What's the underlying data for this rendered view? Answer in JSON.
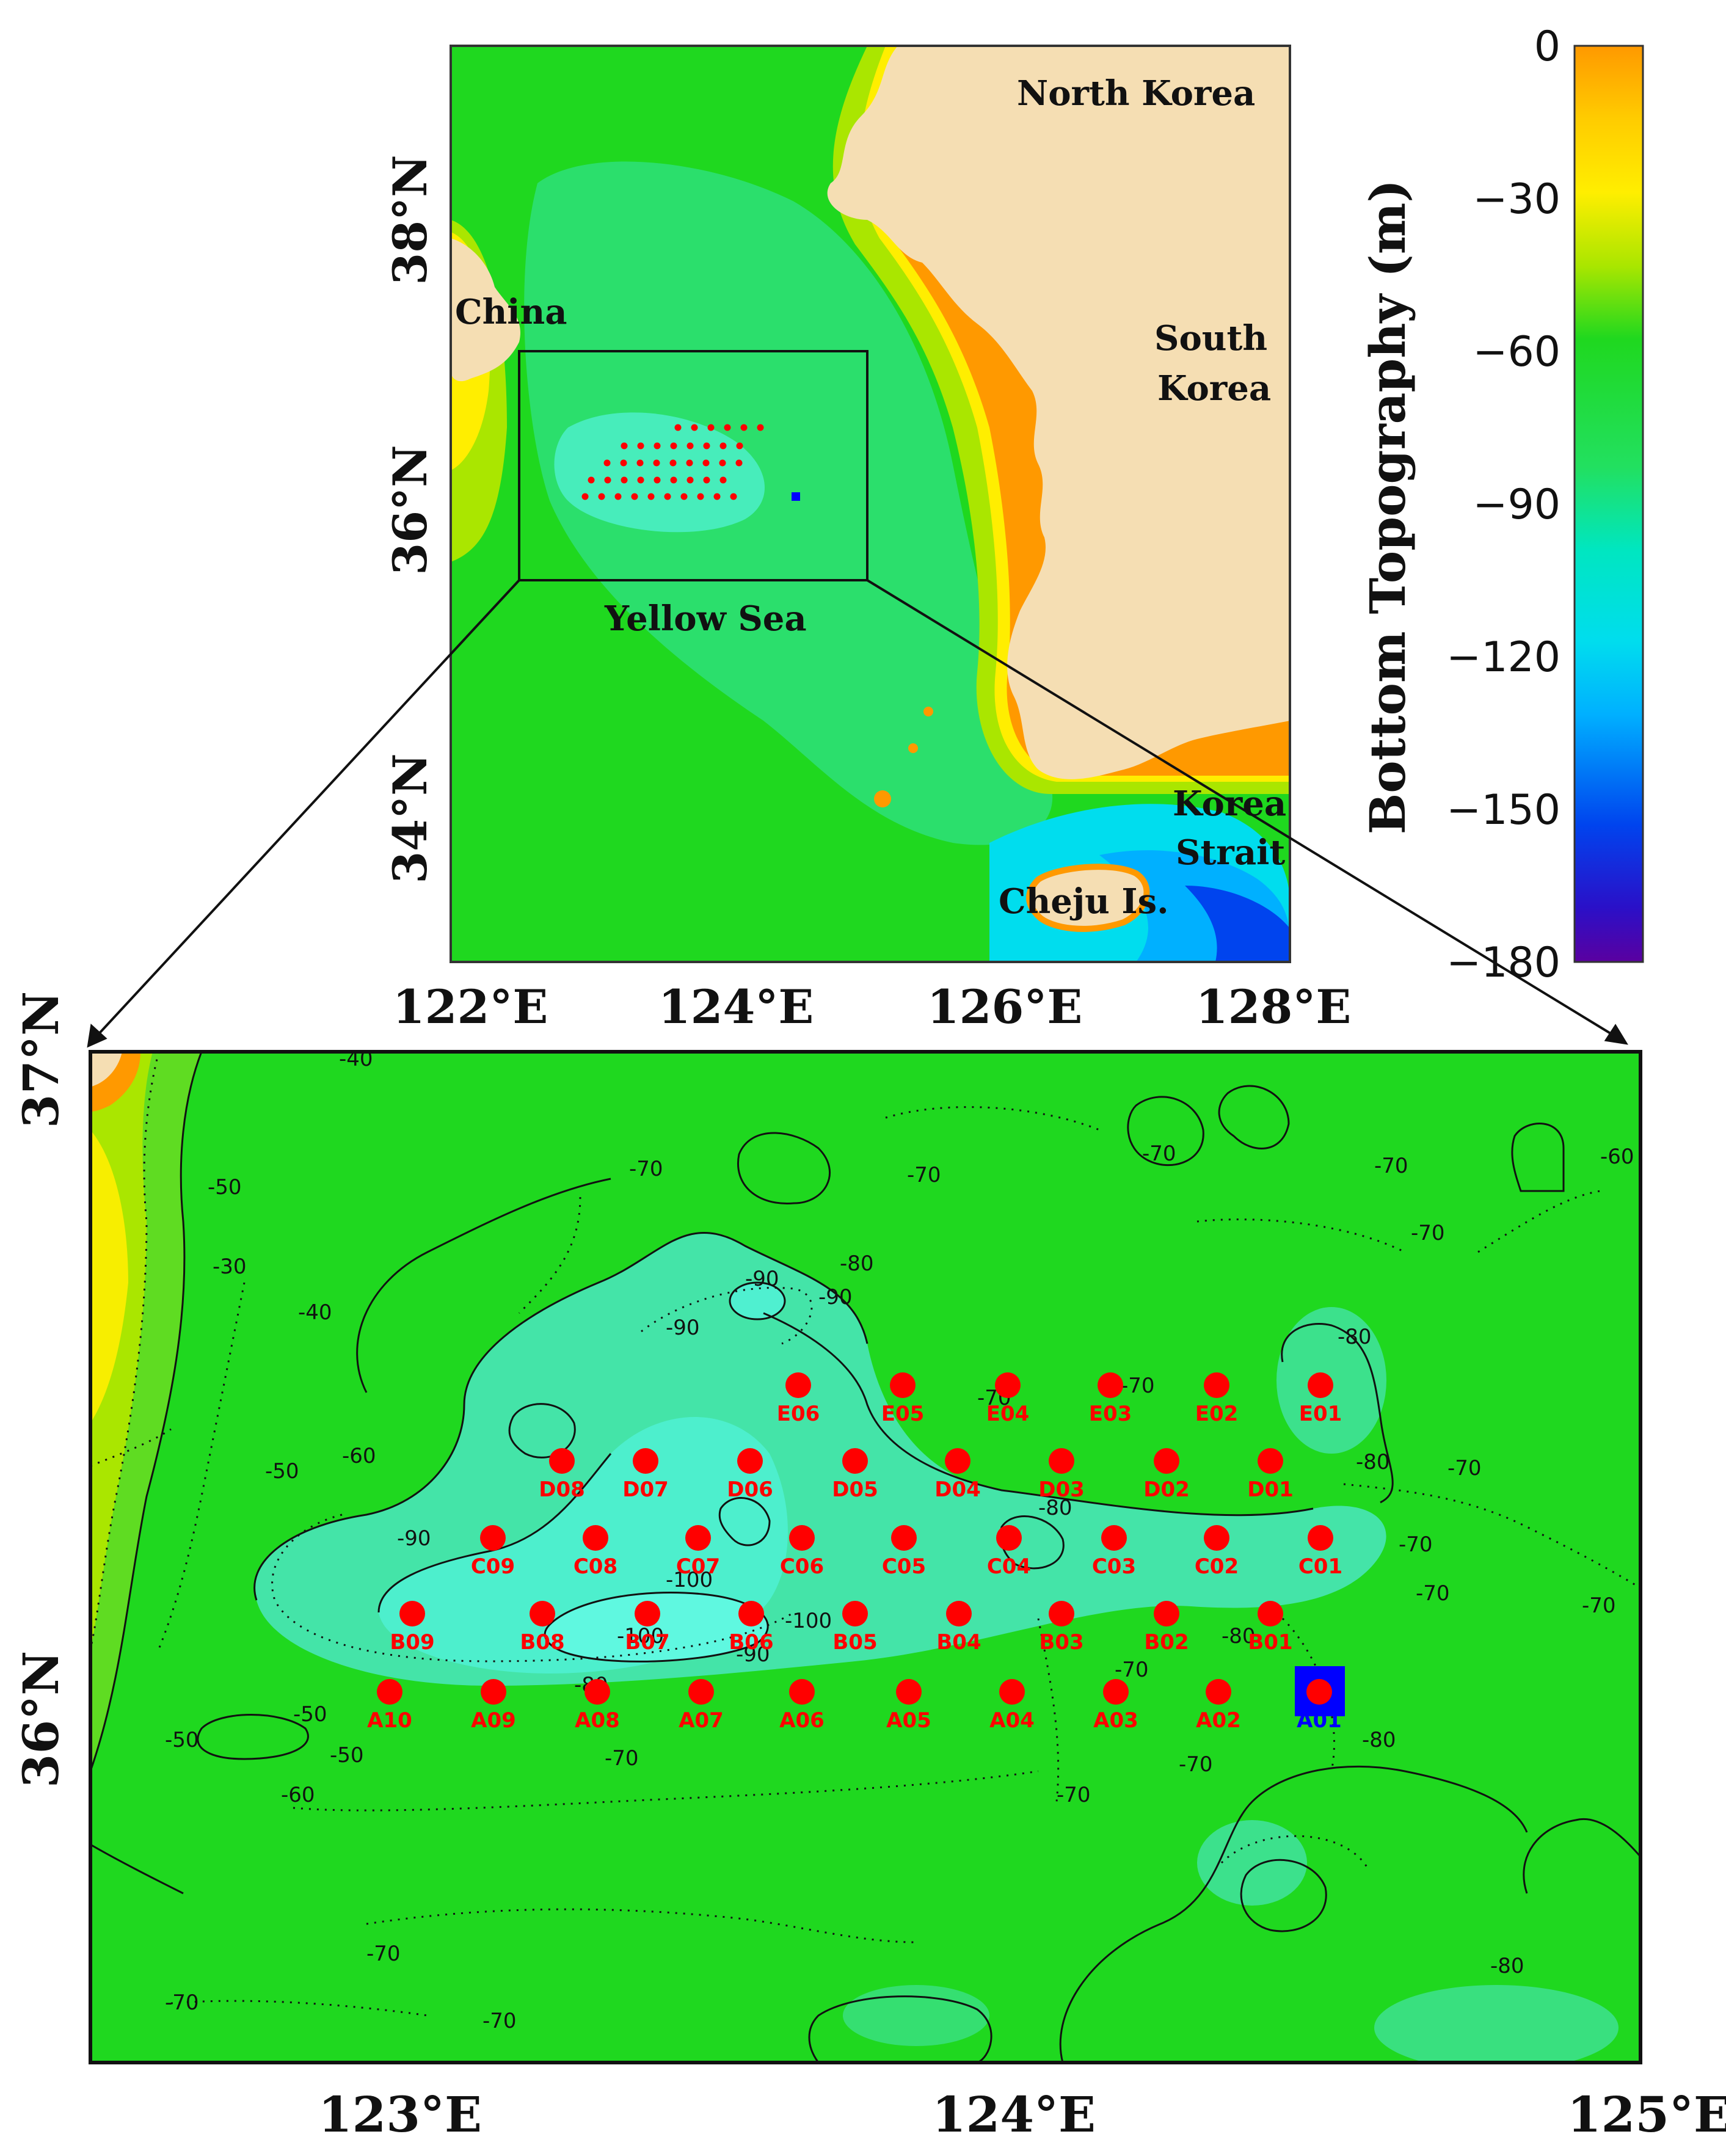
{
  "overview_map": {
    "lat_ticks": [
      "38°N",
      "36°N",
      "34°N"
    ],
    "lon_ticks": [
      "122°E",
      "124°E",
      "126°E",
      "128°E"
    ],
    "labels": {
      "north_korea": "North Korea",
      "china": "China",
      "south_korea": [
        "South",
        "Korea"
      ],
      "yellow_sea": "Yellow Sea",
      "korea_strait": [
        "Korea",
        "Strait"
      ],
      "cheju": "Cheju Is."
    }
  },
  "colorbar": {
    "title": "Bottom Topography (m)",
    "ticks": [
      "0",
      "−30",
      "−60",
      "−90",
      "−120",
      "−150",
      "−180"
    ],
    "colors": [
      "#ff9900",
      "#ffee00",
      "#aae600",
      "#1fd81f",
      "#00e6c0",
      "#00b0ff",
      "#0044ee",
      "#5a00a0"
    ]
  },
  "detail_map": {
    "lat_ticks": [
      "37°N",
      "36°N"
    ],
    "lon_ticks": [
      "123°E",
      "124°E",
      "125°E"
    ],
    "contour_labels": [
      "-40",
      "-30",
      "-40",
      "-50",
      "-60",
      "-50",
      "-70",
      "-70",
      "-70",
      "-70",
      "-60",
      "-70",
      "-80",
      "-90",
      "-90",
      "-90",
      "-70",
      "-70",
      "-80",
      "-80",
      "-70",
      "-90",
      "-100",
      "-100",
      "-90",
      "-100",
      "-80",
      "-50",
      "-50",
      "-50",
      "-60",
      "-70",
      "-70",
      "-70",
      "-80",
      "-70",
      "-70",
      "-80",
      "-80",
      "-70",
      "-70",
      "-70",
      "-70",
      "-70",
      "-80"
    ],
    "stations": {
      "E": [
        "E06",
        "E05",
        "E04",
        "E03",
        "E02",
        "E01"
      ],
      "D": [
        "D08",
        "D07",
        "D06",
        "D05",
        "D04",
        "D03",
        "D02",
        "D01"
      ],
      "C": [
        "C09",
        "C08",
        "C07",
        "C06",
        "C05",
        "C04",
        "C03",
        "C02",
        "C01"
      ],
      "B": [
        "B09",
        "B08",
        "B07",
        "B06",
        "B05",
        "B04",
        "B03",
        "B02",
        "B01"
      ],
      "A": [
        "A10",
        "A09",
        "A08",
        "A07",
        "A06",
        "A05",
        "A04",
        "A03",
        "A02",
        "A01"
      ]
    },
    "highlighted_station": "A01",
    "station_color": "#ff0000",
    "highlight_color": "#0000ff"
  }
}
